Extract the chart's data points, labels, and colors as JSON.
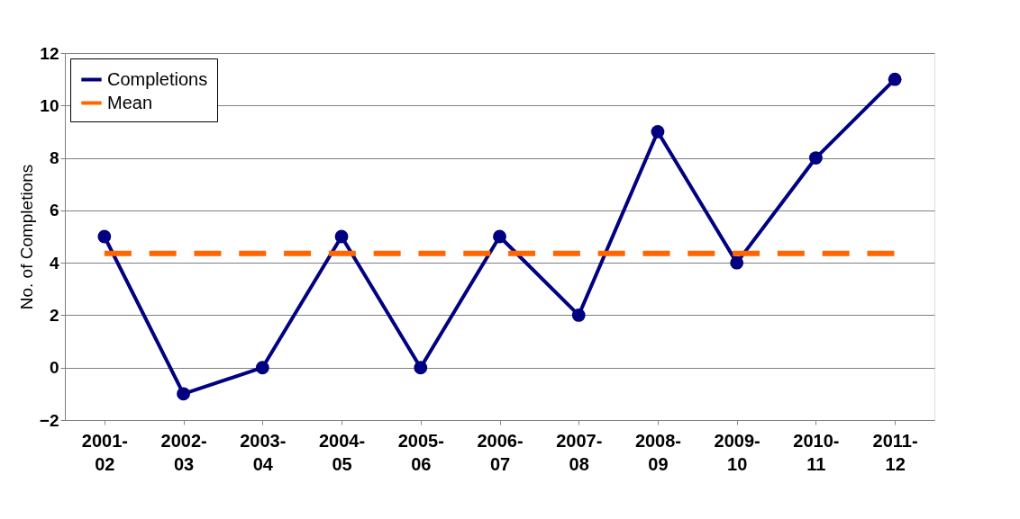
{
  "chart_data": {
    "type": "line",
    "ylabel": "No. of Completions",
    "categories": [
      "2001-02",
      "2002-03",
      "2003-04",
      "2004-05",
      "2005-06",
      "2006-07",
      "2007-08",
      "2008-09",
      "2009-10",
      "2010-11",
      "2011-12"
    ],
    "series": [
      {
        "name": "Completions",
        "color": "#000080",
        "values": [
          5,
          -1,
          0,
          5,
          0,
          5,
          2,
          9,
          4,
          8,
          11
        ]
      },
      {
        "name": "Mean",
        "color": "#ff6600",
        "values": [
          4.36,
          4.36,
          4.36,
          4.36,
          4.36,
          4.36,
          4.36,
          4.36,
          4.36,
          4.36,
          4.36
        ],
        "marker": "none",
        "line_style": "dashed"
      }
    ],
    "ylim": [
      -2,
      12
    ],
    "yticks": [
      -2,
      0,
      2,
      4,
      6,
      8,
      10,
      12
    ],
    "grid": "y",
    "legend": "top left",
    "marker": "circle",
    "line_style": "solid"
  }
}
